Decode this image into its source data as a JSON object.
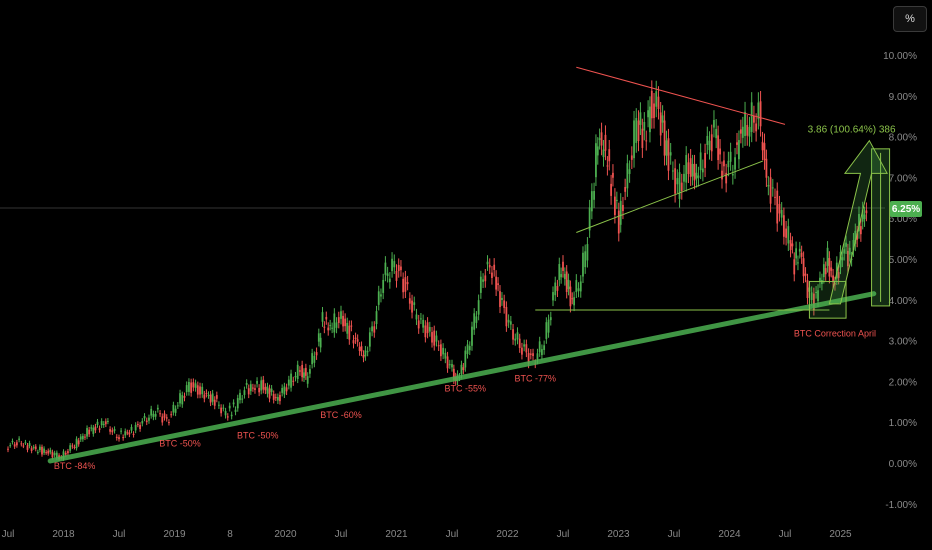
{
  "toolbar": {
    "percent_label": "%"
  },
  "current_value_label": "6.25%",
  "colors": {
    "up": "#4caf50",
    "down": "#ef5350",
    "trend": "#4caf50",
    "annotation_red": "#ef5350",
    "annotation_green": "#8bc34a",
    "background": "#000000"
  },
  "chart_data": {
    "type": "candlestick",
    "y_axis": {
      "ticks": [
        "10.00%",
        "9.00%",
        "8.00%",
        "7.00%",
        "6.00%",
        "5.00%",
        "4.00%",
        "3.00%",
        "2.00%",
        "1.00%",
        "0.00%",
        "-1.00%"
      ],
      "range": [
        -1.2,
        10.5
      ],
      "unit": "%"
    },
    "x_axis": {
      "ticks": [
        "Jul",
        "2018",
        "Jul",
        "2019",
        "8",
        "2020",
        "Jul",
        "2021",
        "Jul",
        "2022",
        "Jul",
        "2023",
        "Jul",
        "2024",
        "Jul",
        "2025"
      ],
      "range": [
        2017.5,
        2025.3
      ]
    },
    "series_points": [
      [
        2017.5,
        0.4
      ],
      [
        2017.62,
        0.5
      ],
      [
        2017.75,
        0.35
      ],
      [
        2017.9,
        0.25
      ],
      [
        2018.0,
        0.15
      ],
      [
        2018.08,
        0.35
      ],
      [
        2018.25,
        0.8
      ],
      [
        2018.4,
        1.0
      ],
      [
        2018.5,
        0.65
      ],
      [
        2018.65,
        0.8
      ],
      [
        2018.85,
        1.3
      ],
      [
        2018.95,
        1.0
      ],
      [
        2019.05,
        1.5
      ],
      [
        2019.15,
        1.9
      ],
      [
        2019.25,
        1.75
      ],
      [
        2019.4,
        1.5
      ],
      [
        2019.48,
        1.2
      ],
      [
        2019.55,
        1.35
      ],
      [
        2019.65,
        1.8
      ],
      [
        2019.8,
        1.9
      ],
      [
        2019.95,
        1.55
      ],
      [
        2020.05,
        2.0
      ],
      [
        2020.15,
        2.3
      ],
      [
        2020.2,
        2.1
      ],
      [
        2020.3,
        2.8
      ],
      [
        2020.35,
        3.5
      ],
      [
        2020.42,
        3.3
      ],
      [
        2020.5,
        3.6
      ],
      [
        2020.65,
        3.0
      ],
      [
        2020.72,
        2.6
      ],
      [
        2020.82,
        3.4
      ],
      [
        2020.9,
        4.6
      ],
      [
        2021.0,
        4.85
      ],
      [
        2021.08,
        4.4
      ],
      [
        2021.2,
        3.6
      ],
      [
        2021.3,
        3.2
      ],
      [
        2021.42,
        2.8
      ],
      [
        2021.5,
        2.4
      ],
      [
        2021.55,
        2.0
      ],
      [
        2021.62,
        2.4
      ],
      [
        2021.72,
        3.5
      ],
      [
        2021.8,
        4.6
      ],
      [
        2021.88,
        4.8
      ],
      [
        2021.95,
        4.0
      ],
      [
        2022.05,
        3.3
      ],
      [
        2022.15,
        2.8
      ],
      [
        2022.25,
        2.5
      ],
      [
        2022.35,
        3.0
      ],
      [
        2022.45,
        4.3
      ],
      [
        2022.5,
        4.8
      ],
      [
        2022.55,
        4.4
      ],
      [
        2022.6,
        3.9
      ],
      [
        2022.68,
        4.6
      ],
      [
        2022.72,
        5.2
      ],
      [
        2022.78,
        6.5
      ],
      [
        2022.83,
        8.0
      ],
      [
        2022.9,
        7.6
      ],
      [
        2022.95,
        6.9
      ],
      [
        2023.02,
        5.9
      ],
      [
        2023.1,
        7.0
      ],
      [
        2023.18,
        8.4
      ],
      [
        2023.25,
        8.0
      ],
      [
        2023.3,
        8.7
      ],
      [
        2023.38,
        8.7
      ],
      [
        2023.45,
        7.6
      ],
      [
        2023.55,
        6.8
      ],
      [
        2023.65,
        7.3
      ],
      [
        2023.72,
        7.0
      ],
      [
        2023.8,
        7.5
      ],
      [
        2023.88,
        8.2
      ],
      [
        2023.95,
        7.1
      ],
      [
        2024.05,
        7.4
      ],
      [
        2024.12,
        8.1
      ],
      [
        2024.2,
        8.4
      ],
      [
        2024.28,
        8.5
      ],
      [
        2024.35,
        7.0
      ],
      [
        2024.45,
        6.2
      ],
      [
        2024.55,
        5.5
      ],
      [
        2024.6,
        4.9
      ],
      [
        2024.65,
        5.2
      ],
      [
        2024.72,
        4.2
      ],
      [
        2024.78,
        4.0
      ],
      [
        2024.85,
        4.6
      ],
      [
        2024.9,
        5.0
      ],
      [
        2024.95,
        4.4
      ],
      [
        2025.0,
        4.8
      ],
      [
        2025.05,
        5.3
      ],
      [
        2025.1,
        5.0
      ],
      [
        2025.15,
        5.6
      ],
      [
        2025.2,
        5.9
      ],
      [
        2025.25,
        6.25
      ]
    ],
    "annotations": [
      {
        "text": "BTC -84%",
        "x": 2018.1,
        "y": -0.15
      },
      {
        "text": "BTC -50%",
        "x": 2019.05,
        "y": 0.4
      },
      {
        "text": "BTC -50%",
        "x": 2019.75,
        "y": 0.6
      },
      {
        "text": "BTC -60%",
        "x": 2020.5,
        "y": 1.1
      },
      {
        "text": "BTC -55%",
        "x": 2021.62,
        "y": 1.75
      },
      {
        "text": "BTC -77%",
        "x": 2022.25,
        "y": 2.0
      },
      {
        "text": "BTC Correction April",
        "x": 2024.95,
        "y": 3.1
      }
    ],
    "measure_label": "3.86 (100.64%) 386",
    "last_value": 6.25
  }
}
